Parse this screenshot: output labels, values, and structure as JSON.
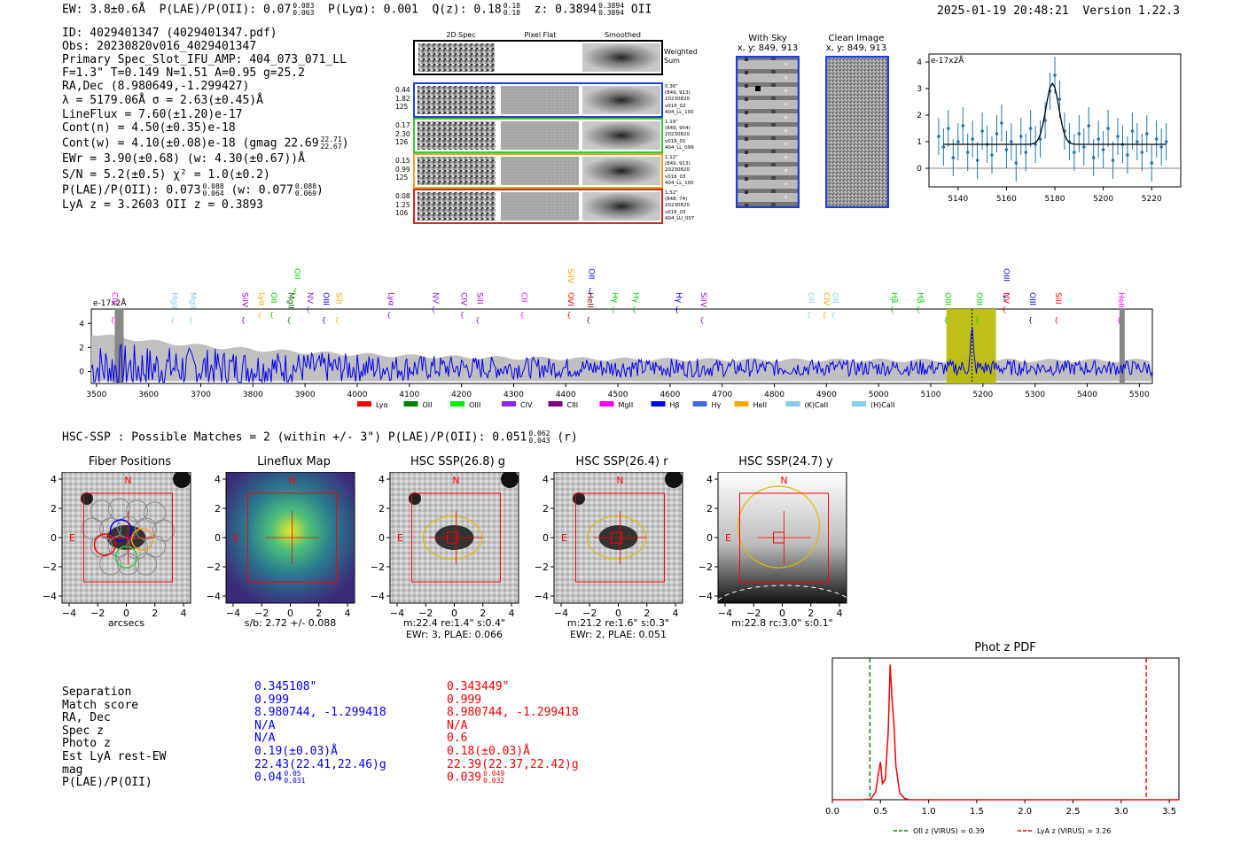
{
  "header": {
    "ew": "EW: 3.8±0.6Å",
    "plae": "P(LAE)/P(OII): 0.07",
    "plae_hi": "0.083",
    "plae_lo": "0.063",
    "plya": "P(Lyα): 0.001",
    "qz": "Q(z): 0.18",
    "qz_hi": "0.18",
    "qz_lo": "0.18",
    "z": "z: 0.3894",
    "z_hi": "0.3894",
    "z_lo": "0.3894",
    "z_line": "OII",
    "timestamp": "2025-01-19 20:48:21",
    "version": "Version 1.22.3"
  },
  "info": {
    "id": "ID: 4029401347 (4029401347.pdf)",
    "obs": "Obs: 20230820v016_4029401347",
    "primary": "Primary Spec_Slot_IFU_AMP: 404_073_071_LL",
    "params": "F=1.3\"  T=0.149  N=1.51  A=0.95  g=25.2",
    "radec": "RA,Dec (8.980649,-1.299427)",
    "lambda": "λ = 5179.06Å  σ = 2.63(±0.45)Å",
    "lineflux": "LineFlux = 7.60(±1.20)e-17",
    "contn": "Cont(n) = 4.50(±0.35)e-18",
    "contw": "Cont(w) = 4.10(±0.08)e-18 (gmag 22.69",
    "contw_hi": "22.71",
    "contw_lo": "22.67",
    "ewr": "EWr = 3.90(±0.68) (w: 4.30(±0.67))Å",
    "sn": "S/N = 5.2(±0.5)  χ² = 1.0(±0.2)",
    "plae": "P(LAE)/P(OII): 0.073",
    "plae_hi": "0.088",
    "plae_lo": "0.064",
    "plae_w": "(w: 0.077",
    "plae_w_hi": "0.088",
    "plae_w_lo": "0.069",
    "lya": "LyA z = 3.2603  OII z = 0.3893"
  },
  "cutouts": {
    "headers": [
      "2D Spec",
      "Pixel Flat",
      "Smoothed"
    ],
    "weighted": [
      "Weighted",
      "Sum"
    ],
    "rows": [
      {
        "left": [
          "0.44",
          "1.82",
          "125"
        ],
        "right": [
          "0.36\"",
          "(849, 913)",
          "20230820",
          "v016_02",
          "404_LL_100"
        ],
        "color": "#1f3fdc"
      },
      {
        "left": [
          "0.17",
          "2.30",
          "126"
        ],
        "right": [
          "1.19\"",
          "(849, 904)",
          "20230820",
          "v016_01",
          "404_LL_099"
        ],
        "color": "#33cc33"
      },
      {
        "left": [
          "0.15",
          "0.99",
          "125"
        ],
        "right": [
          "1.12\"",
          "(849, 913)",
          "20230820",
          "v016_03",
          "404_LL_100"
        ],
        "color": "#f0a020"
      },
      {
        "left": [
          "0.08",
          "1.25",
          "106"
        ],
        "right": [
          "1.52\"",
          "(848, 74)",
          "20230820",
          "v016_03",
          "404_LU_007"
        ],
        "color": "#e02020"
      }
    ],
    "with_sky": "With Sky",
    "with_sky_xy": "x, y: 849, 913",
    "clean": "Clean Image",
    "clean_xy": "x, y: 849, 913"
  },
  "zoom_chart": {
    "type": "scatter",
    "unit": "e-17x2Å",
    "x": [
      5132,
      5134,
      5136,
      5138,
      5140,
      5142,
      5144,
      5146,
      5148,
      5150,
      5152,
      5154,
      5156,
      5158,
      5160,
      5162,
      5164,
      5166,
      5168,
      5170,
      5172,
      5174,
      5176,
      5178,
      5180,
      5182,
      5184,
      5186,
      5188,
      5190,
      5192,
      5194,
      5196,
      5198,
      5200,
      5202,
      5204,
      5206,
      5208,
      5210,
      5212,
      5214,
      5216,
      5218,
      5220,
      5222,
      5224,
      5226
    ],
    "y": [
      1.2,
      0.8,
      1.5,
      0.4,
      1.0,
      1.6,
      0.6,
      1.1,
      0.3,
      1.4,
      0.9,
      0.5,
      1.3,
      1.7,
      0.7,
      1.0,
      0.2,
      1.2,
      0.6,
      1.5,
      0.9,
      1.1,
      1.8,
      2.9,
      3.5,
      2.6,
      1.4,
      1.0,
      0.6,
      1.3,
      0.8,
      1.6,
      0.4,
      1.1,
      0.7,
      1.5,
      0.3,
      1.2,
      0.9,
      0.5,
      1.4,
      1.0,
      0.6,
      1.3,
      0.2,
      1.1,
      0.8,
      1.0
    ],
    "xticks": [
      5140,
      5160,
      5180,
      5200,
      5220
    ],
    "yticks": [
      0,
      1,
      2,
      3,
      4
    ],
    "xlim": [
      5128,
      5232
    ],
    "ylim": [
      -0.7,
      4.3
    ]
  },
  "spectrum": {
    "type": "line",
    "unit": "e-17x2Å",
    "xticks": [
      3500,
      3600,
      3700,
      3800,
      3900,
      4000,
      4100,
      4200,
      4300,
      4400,
      4500,
      4600,
      4700,
      4800,
      4900,
      5000,
      5100,
      5200,
      5300,
      5400,
      5500
    ],
    "yticks": [
      0,
      2,
      4
    ],
    "xlim": [
      3490,
      5525
    ],
    "ylim": [
      -1,
      5.2
    ],
    "highlight": [
      5130,
      5225
    ],
    "peak": 5179,
    "line_labels": [
      {
        "w": 3530,
        "t": "CIII",
        "c": "#ff00ff"
      },
      {
        "w": 3645,
        "t": "MgII",
        "c": "#87ceeb"
      },
      {
        "w": 3680,
        "t": "MgII",
        "c": "#87ceeb"
      },
      {
        "w": 3780,
        "t": "SiIV",
        "c": "#9400d3"
      },
      {
        "w": 3812,
        "t": "Lyα",
        "c": "#ffa500"
      },
      {
        "w": 3835,
        "t": "OII",
        "c": "#00cc00"
      },
      {
        "w": 3868,
        "t": "MgII",
        "c": "#006400"
      },
      {
        "w": 3880,
        "t": "OII",
        "c": "#00cc00",
        "hi": true
      },
      {
        "w": 3905,
        "t": "NV",
        "c": "#8a2be2"
      },
      {
        "w": 3935,
        "t": "OIII",
        "c": "#0000cc"
      },
      {
        "w": 3960,
        "t": "SiII",
        "c": "#ffa500"
      },
      {
        "w": 4060,
        "t": "Lyα",
        "c": "#9400d3"
      },
      {
        "w": 4145,
        "t": "NV",
        "c": "#8a2be2"
      },
      {
        "w": 4200,
        "t": "CIV",
        "c": "#9400d3"
      },
      {
        "w": 4230,
        "t": "SiII",
        "c": "#9400d3"
      },
      {
        "w": 4315,
        "t": "CII",
        "c": "#ff00ff"
      },
      {
        "w": 4405,
        "t": "OVI",
        "c": "#ff0000"
      },
      {
        "w": 4405,
        "t": "SiIV",
        "c": "#ffa500",
        "hi": true
      },
      {
        "w": 4442,
        "t": "HeII",
        "c": "#800000"
      },
      {
        "w": 4445,
        "t": "OII",
        "c": "#0000cc",
        "hi": true
      },
      {
        "w": 4490,
        "t": "Hγ",
        "c": "#00cc00"
      },
      {
        "w": 4530,
        "t": "Hγ",
        "c": "#00cc00"
      },
      {
        "w": 4612,
        "t": "Hγ",
        "c": "#0000ff"
      },
      {
        "w": 4660,
        "t": "SiIV",
        "c": "#9400d3"
      },
      {
        "w": 4865,
        "t": "OII",
        "c": "#87ceeb"
      },
      {
        "w": 4895,
        "t": "CIV",
        "c": "#ffa500"
      },
      {
        "w": 4912,
        "t": "OII",
        "c": "#87ceeb"
      },
      {
        "w": 5025,
        "t": "Hβ",
        "c": "#00cc00"
      },
      {
        "w": 5075,
        "t": "Hβ",
        "c": "#00cc00"
      },
      {
        "w": 5128,
        "t": "OIII",
        "c": "#00cc00"
      },
      {
        "w": 5188,
        "t": "OIII",
        "c": "#00cc00"
      },
      {
        "w": 5240,
        "t": "NV",
        "c": "#ff0000"
      },
      {
        "w": 5240,
        "t": "OIII",
        "c": "#0000cc",
        "hi": true
      },
      {
        "w": 5290,
        "t": "OIII",
        "c": "#0000cc"
      },
      {
        "w": 5340,
        "t": "SiII",
        "c": "#ff0000"
      },
      {
        "w": 5460,
        "t": "HeII",
        "c": "#ff00ff"
      }
    ],
    "legend": [
      {
        "label": "Lyα",
        "color": "#ff0000"
      },
      {
        "label": "OII",
        "color": "#008000"
      },
      {
        "label": "OIII",
        "color": "#00ee00"
      },
      {
        "label": "CIV",
        "color": "#8a2be2"
      },
      {
        "label": "CIII",
        "color": "#800080"
      },
      {
        "label": "MgII",
        "color": "#ff00ff"
      },
      {
        "label": "Hβ",
        "color": "#0000ff"
      },
      {
        "label": "Hγ",
        "color": "#4169e1"
      },
      {
        "label": "HeII",
        "color": "#ffa500"
      },
      {
        "label": "(K)CaII",
        "color": "#87ceeb"
      },
      {
        "label": "(H)CaII",
        "color": "#87ceeb"
      }
    ]
  },
  "hsc": {
    "summary": "HSC-SSP : Possible Matches = 2 (within +/- 3\")  P(LAE)/P(OII): 0.051",
    "summary_hi": "0.062",
    "summary_lo": "0.043",
    "summary_band": "(r)",
    "panels": [
      {
        "title": "Fiber Positions",
        "cap1": "arcsecs",
        "cap2": ""
      },
      {
        "title": "Lineflux Map",
        "cap1": "s/b: 2.72 +/- 0.088",
        "cap2": ""
      },
      {
        "title": "HSC SSP(26.8) g",
        "cap1": "m:22.4  re:1.4\"  s:0.4\"",
        "cap2": "EWr: 3, PLAE: 0.066"
      },
      {
        "title": "HSC SSP(26.4) r",
        "cap1": "m:21.2  re:1.6\"  s:0.3\"",
        "cap2": "EWr: 2, PLAE: 0.051"
      },
      {
        "title": "HSC SSP(24.7) y",
        "cap1": "m:22.8 rc:3.0\"  s:0.1\"",
        "cap2": ""
      }
    ],
    "ticks": [
      "4",
      "2",
      "0",
      "−2",
      "−4"
    ],
    "xticks": [
      "−4",
      "−2",
      "0",
      "2",
      "4"
    ],
    "north": "N",
    "east": "E"
  },
  "matches": {
    "labels": [
      "Separation",
      "Match score",
      "RA, Dec",
      "Spec z",
      "Photo z",
      "Est LyA rest-EW",
      "mag",
      "P(LAE)/P(OII)"
    ],
    "blue": [
      "0.345108\"",
      "0.999",
      "8.980744, -1.299418",
      "N/A",
      "N/A",
      "0.19(±0.03)Å",
      "22.43(22.41,22.46)g",
      "0.04"
    ],
    "blue_hi": "0.05",
    "blue_lo": "0.031",
    "red": [
      "0.343449\"",
      "0.999",
      "8.980744, -1.299418",
      "N/A",
      "0.6",
      "0.18(±0.03)Å",
      "22.39(22.37,22.42)g",
      "0.039"
    ],
    "red_hi": "0.049",
    "red_lo": "0.032"
  },
  "chart_data": [
    {
      "type": "line",
      "title": "Phot z PDF",
      "x": [
        0.0,
        0.3,
        0.4,
        0.45,
        0.48,
        0.5,
        0.52,
        0.55,
        0.58,
        0.6,
        0.62,
        0.64,
        0.66,
        0.7,
        0.75,
        0.8,
        1.0,
        2.0,
        3.6
      ],
      "values": [
        0,
        0,
        0.005,
        0.06,
        0.2,
        0.28,
        0.12,
        0.15,
        0.5,
        1.0,
        0.75,
        0.55,
        0.25,
        0.05,
        0.01,
        0,
        0,
        0,
        0
      ],
      "xticks": [
        "0.0",
        "0.5",
        "1.0",
        "1.5",
        "2.0",
        "2.5",
        "3.0",
        "3.5"
      ],
      "xlim": [
        0,
        3.6
      ],
      "ylim": [
        0,
        1.05
      ],
      "vlines": [
        {
          "x": 0.39,
          "color": "#008000",
          "label": "OII z (VIRUS) = 0.39"
        },
        {
          "x": 3.26,
          "color": "#ff0000",
          "label": "LyA z (VIRUS) = 3.26"
        }
      ]
    }
  ]
}
